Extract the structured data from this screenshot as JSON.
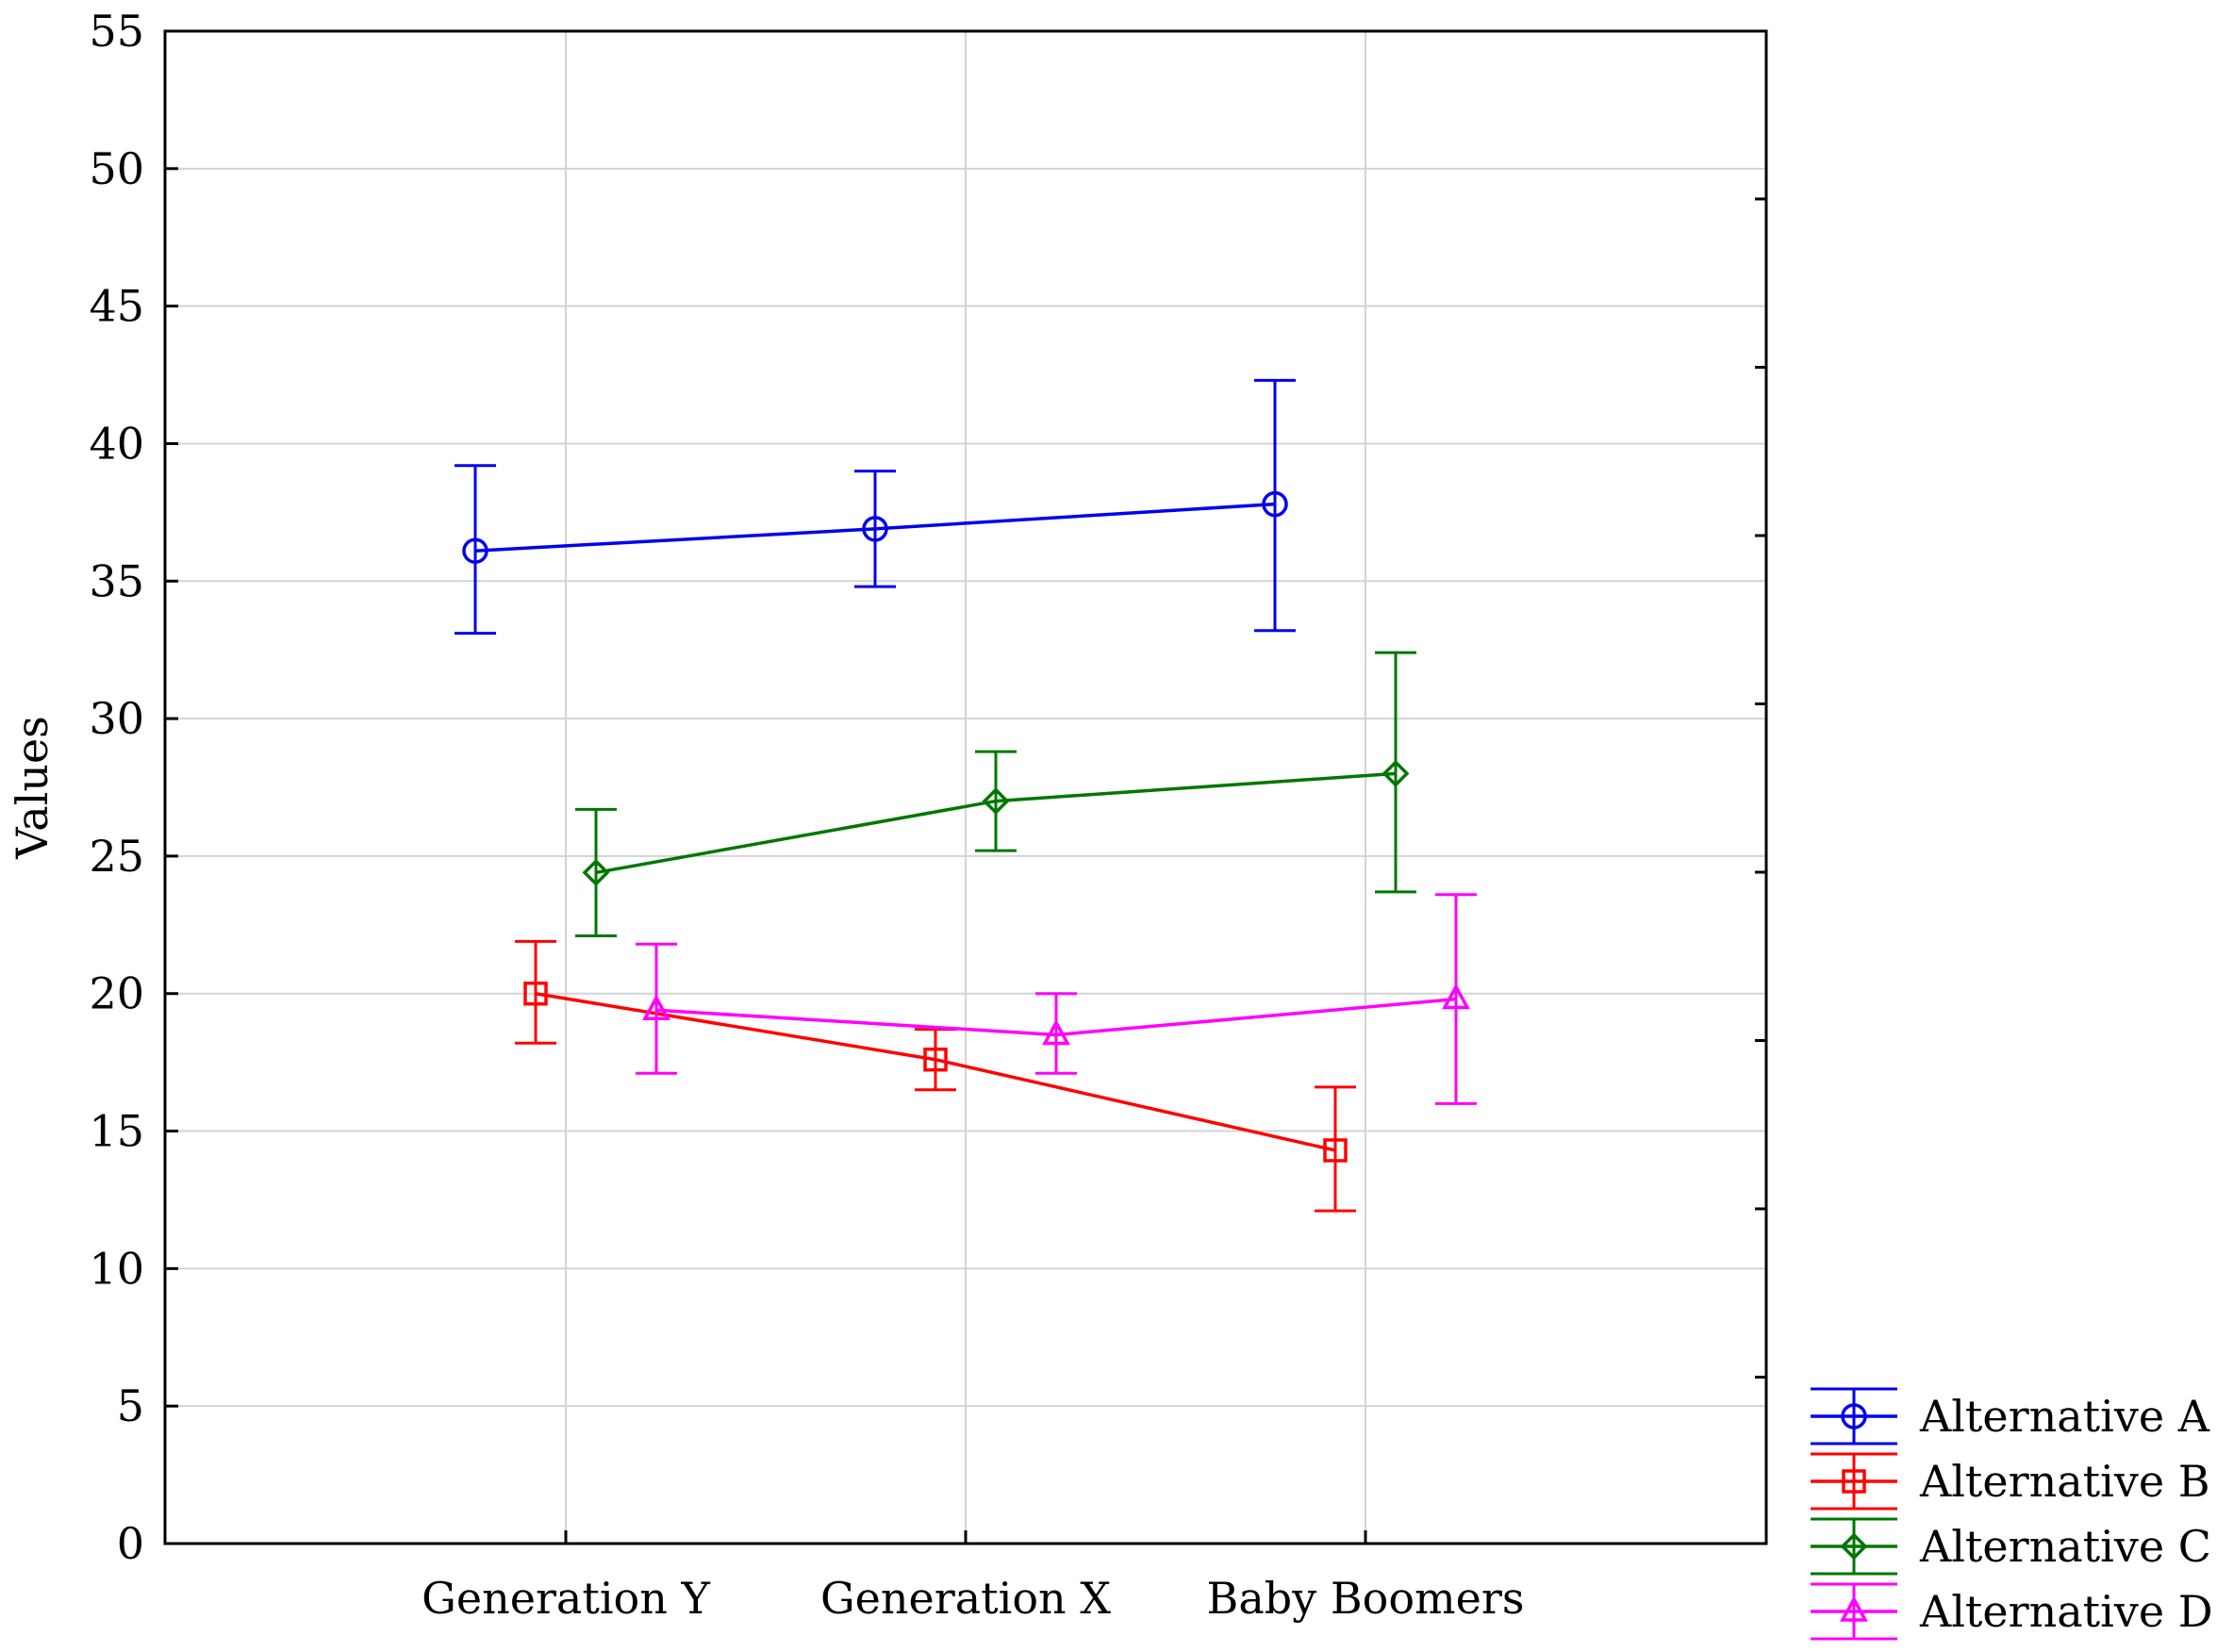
{
  "chart_data": {
    "type": "line",
    "title": "",
    "xlabel": "",
    "ylabel": "Values",
    "categories": [
      "Generation Y",
      "Generation X",
      "Baby Boomers"
    ],
    "ylim": [
      0,
      55
    ],
    "yticks": [
      0,
      5,
      10,
      15,
      20,
      25,
      30,
      35,
      40,
      45,
      50,
      55
    ],
    "grid": true,
    "legend_position": "bottom-right outside",
    "series": [
      {
        "name": "Alternative A",
        "color": "#0000ee",
        "marker": "circle",
        "values": [
          36.1,
          36.9,
          37.8
        ],
        "lower": [
          33.1,
          34.8,
          33.2
        ],
        "upper": [
          39.2,
          39.0,
          42.3
        ]
      },
      {
        "name": "Alternative B",
        "color": "#ff0000",
        "marker": "square",
        "values": [
          20.0,
          17.6,
          14.3
        ],
        "lower": [
          18.2,
          16.5,
          12.1
        ],
        "upper": [
          21.9,
          18.7,
          16.6
        ]
      },
      {
        "name": "Alternative C",
        "color": "#007700",
        "marker": "diamond",
        "values": [
          24.4,
          27.0,
          28.0
        ],
        "lower": [
          22.1,
          25.2,
          23.7
        ],
        "upper": [
          26.7,
          28.8,
          32.4
        ]
      },
      {
        "name": "Alternative D",
        "color": "#ff00ff",
        "marker": "triangle",
        "values": [
          19.4,
          18.5,
          19.8
        ],
        "lower": [
          17.1,
          17.1,
          16.0
        ],
        "upper": [
          21.8,
          20.0,
          23.6
        ]
      }
    ]
  }
}
